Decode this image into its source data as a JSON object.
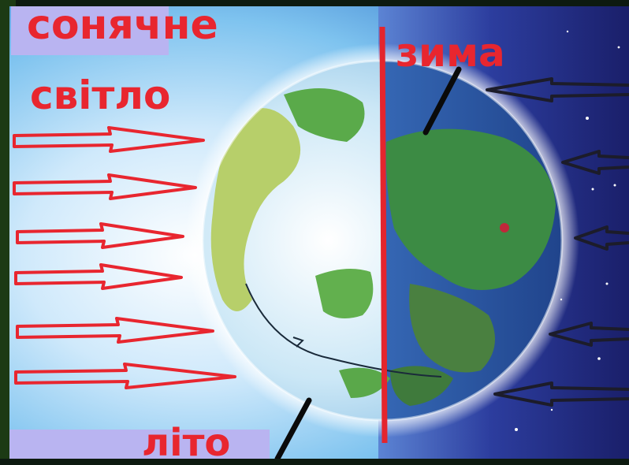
{
  "labels": {
    "sunlight_line1": "сонячне",
    "sunlight_line2": "світло",
    "winter": "зима",
    "summer": "літо"
  },
  "colors": {
    "label_text": "#e8262f",
    "sun_arrow": "#e8262f",
    "night_arrow": "#1c1c2a",
    "terminator_line": "#e4252d",
    "axis": "#0a0a0a",
    "day_sky": "#8ecdf3",
    "night_sky": "#1f2a7a",
    "ocean_day": "#b9def2",
    "ocean_night": "#2c4f9a",
    "land": "#55a84a"
  },
  "icons": [
    "sunlight-arrow-icon",
    "night-arrow-icon",
    "earth-globe-icon",
    "location-dot-icon"
  ]
}
